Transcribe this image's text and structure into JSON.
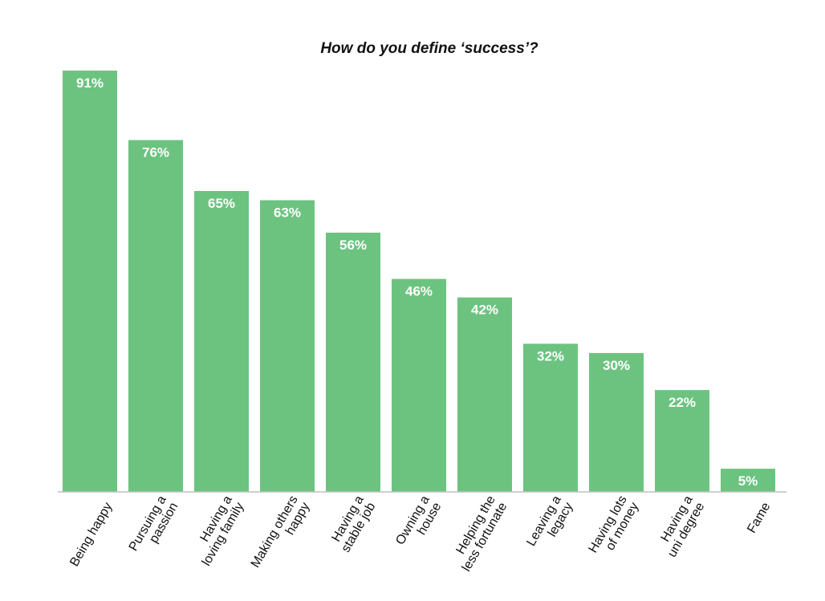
{
  "chart_data": {
    "type": "bar",
    "title": "How do you define ‘success’?",
    "unit": "%",
    "categories": [
      [
        "Being happy"
      ],
      [
        "Pursuing a",
        "passion"
      ],
      [
        "Having a",
        "loving family"
      ],
      [
        "Making others",
        "happy"
      ],
      [
        "Having a",
        "stable job"
      ],
      [
        "Owning a",
        "house"
      ],
      [
        "Helping the",
        "less fortunate"
      ],
      [
        "Leaving a",
        "legacy"
      ],
      [
        "Having lots",
        "of money"
      ],
      [
        "Having a",
        "uni degree"
      ],
      [
        "Fame"
      ]
    ],
    "values": [
      91,
      76,
      65,
      63,
      56,
      46,
      42,
      32,
      30,
      22,
      5
    ],
    "value_labels": [
      "91%",
      "76%",
      "65%",
      "63%",
      "56%",
      "46%",
      "42%",
      "32%",
      "30%",
      "22%",
      "5%"
    ],
    "bar_color": "#6cc380",
    "ylim": [
      0,
      91
    ]
  }
}
